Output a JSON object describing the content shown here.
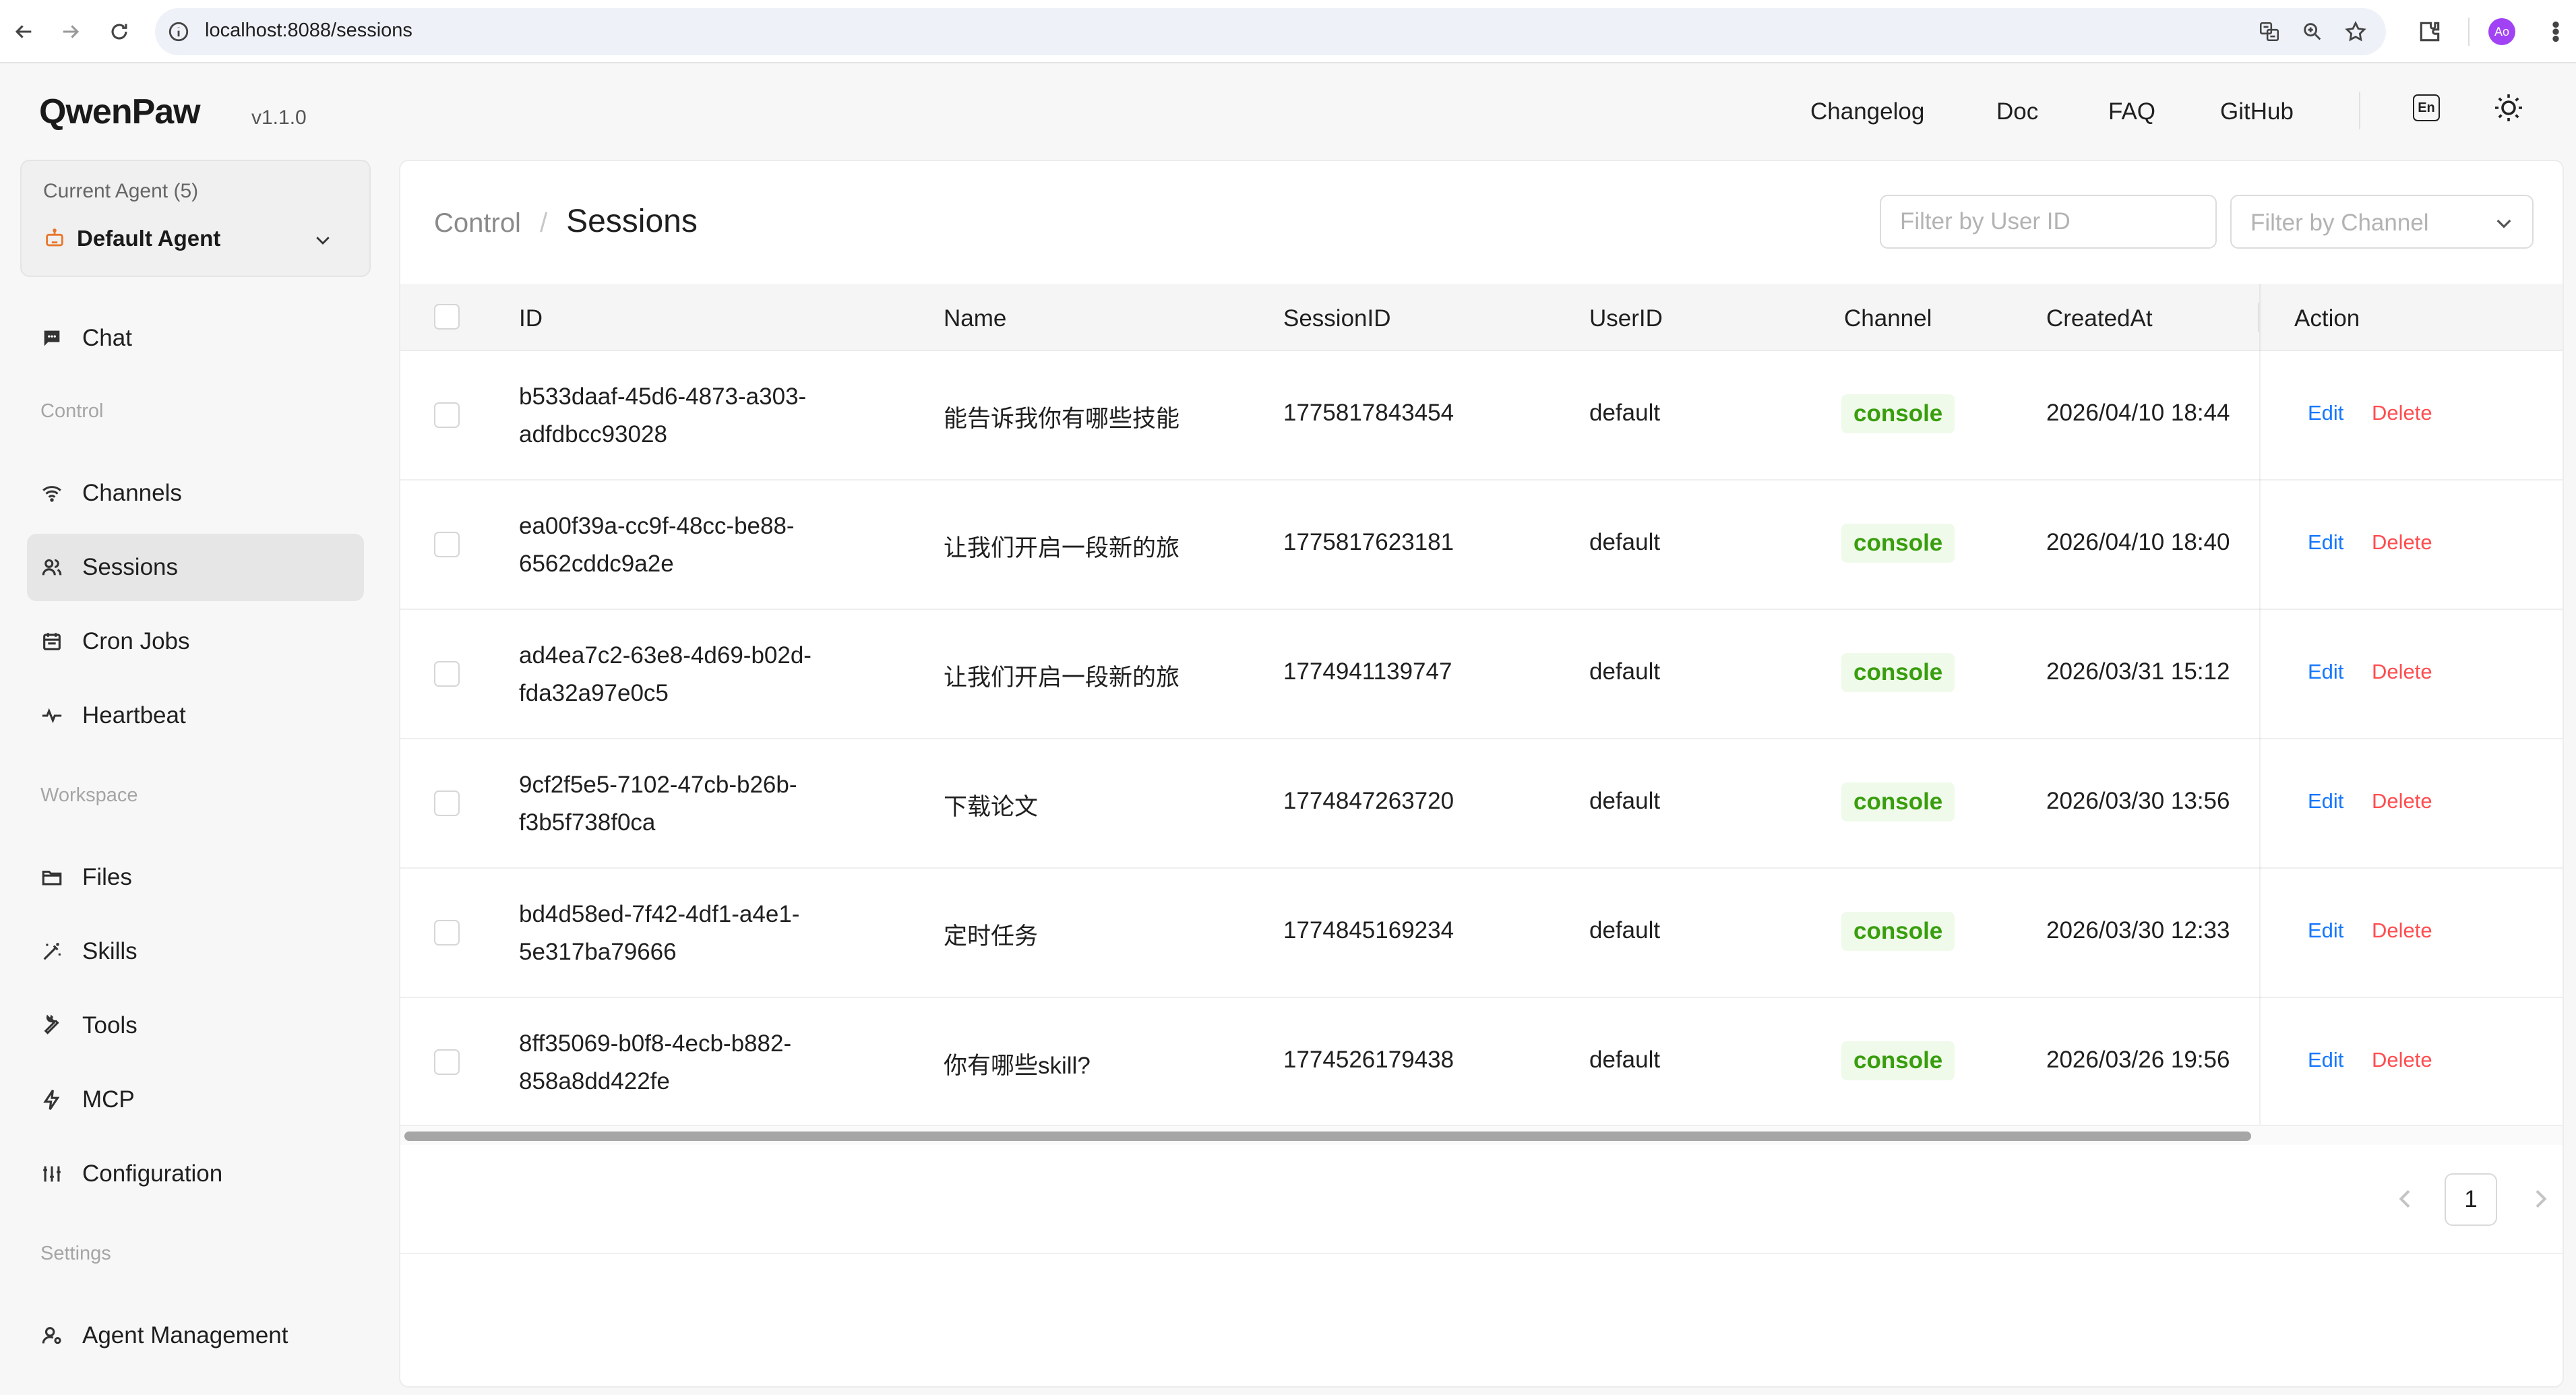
{
  "browser": {
    "url": "localhost:8088/sessions",
    "profile_initials": "Ao"
  },
  "header": {
    "logo": "QwenPaw",
    "version": "v1.1.0",
    "links": [
      "Changelog",
      "Doc",
      "FAQ",
      "GitHub"
    ],
    "lang": "En"
  },
  "sidebar": {
    "agent_label": "Current Agent (5)",
    "agent_name": "Default Agent",
    "chat": "Chat",
    "section_control": "Control",
    "control_items": [
      "Channels",
      "Sessions",
      "Cron Jobs",
      "Heartbeat"
    ],
    "section_workspace": "Workspace",
    "workspace_items": [
      "Files",
      "Skills",
      "Tools",
      "MCP",
      "Configuration"
    ],
    "section_settings": "Settings",
    "settings_items": [
      "Agent Management"
    ],
    "active": "Sessions"
  },
  "main": {
    "breadcrumb_parent": "Control",
    "breadcrumb_sep": "/",
    "breadcrumb_current": "Sessions",
    "filter_user_placeholder": "Filter by User ID",
    "filter_channel_placeholder": "Filter by Channel",
    "columns": [
      "ID",
      "Name",
      "SessionID",
      "UserID",
      "Channel",
      "CreatedAt",
      "Action"
    ],
    "rows": [
      {
        "id_line1": "b533daaf-45d6-4873-a303-",
        "id_line2": "adfdbcc93028",
        "name": "能告诉我你有哪些技能",
        "session_id": "1775817843454",
        "user_id": "default",
        "channel": "console",
        "created_at": "2026/04/10 18:44"
      },
      {
        "id_line1": "ea00f39a-cc9f-48cc-be88-",
        "id_line2": "6562cddc9a2e",
        "name": "让我们开启一段新的旅",
        "session_id": "1775817623181",
        "user_id": "default",
        "channel": "console",
        "created_at": "2026/04/10 18:40"
      },
      {
        "id_line1": "ad4ea7c2-63e8-4d69-b02d-",
        "id_line2": "fda32a97e0c5",
        "name": "让我们开启一段新的旅",
        "session_id": "1774941139747",
        "user_id": "default",
        "channel": "console",
        "created_at": "2026/03/31 15:12"
      },
      {
        "id_line1": "9cf2f5e5-7102-47cb-b26b-",
        "id_line2": "f3b5f738f0ca",
        "name": "下载论文",
        "session_id": "1774847263720",
        "user_id": "default",
        "channel": "console",
        "created_at": "2026/03/30 13:56"
      },
      {
        "id_line1": "bd4d58ed-7f42-4df1-a4e1-",
        "id_line2": "5e317ba79666",
        "name": "定时任务",
        "session_id": "1774845169234",
        "user_id": "default",
        "channel": "console",
        "created_at": "2026/03/30 12:33"
      },
      {
        "id_line1": "8ff35069-b0f8-4ecb-b882-",
        "id_line2": "858a8dd422fe",
        "name": "你有哪些skill?",
        "session_id": "1774526179438",
        "user_id": "default",
        "channel": "console",
        "created_at": "2026/03/26 19:56"
      }
    ],
    "action_edit": "Edit",
    "action_delete": "Delete",
    "current_page": "1"
  },
  "colors": {
    "accent": "#1677ff",
    "danger": "#ff4d4f",
    "success": "#389e0d",
    "success_bg": "#f0faeb",
    "robot_icon": "#e8772e"
  }
}
